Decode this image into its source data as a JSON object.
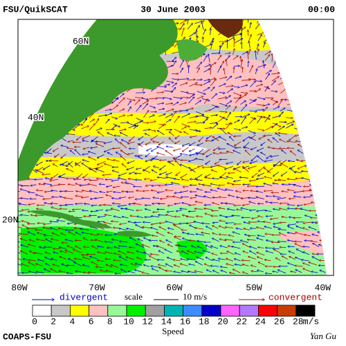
{
  "header": {
    "left": "FSU/QuikSCAT",
    "date": "30 June 2003",
    "time": "00:00"
  },
  "map": {
    "lat_labels": [
      "60N",
      "40N",
      "20N"
    ],
    "lon_labels": [
      "80W",
      "70W",
      "60W",
      "50W",
      "40W"
    ]
  },
  "legend": {
    "divergent": "divergent",
    "scale": "scale",
    "scale_value": "10 m/s",
    "convergent": "convergent"
  },
  "colorbar": {
    "ticks": [
      0,
      2,
      4,
      6,
      8,
      10,
      12,
      14,
      16,
      18,
      20,
      22,
      24,
      26,
      28
    ],
    "unit": "m/s",
    "title": "Speed",
    "colors": [
      "#ffffff",
      "#c8c8c8",
      "#ffff00",
      "#ffc0c0",
      "#98f898",
      "#00f000",
      "#a0a0a0",
      "#00b4b4",
      "#3c8cff",
      "#0000c8",
      "#ff64ff",
      "#b478ff",
      "#ff0000",
      "#c83c00",
      "#000000"
    ]
  },
  "footer": {
    "left": "COAPS-FSU",
    "right": "Yan Gu"
  }
}
